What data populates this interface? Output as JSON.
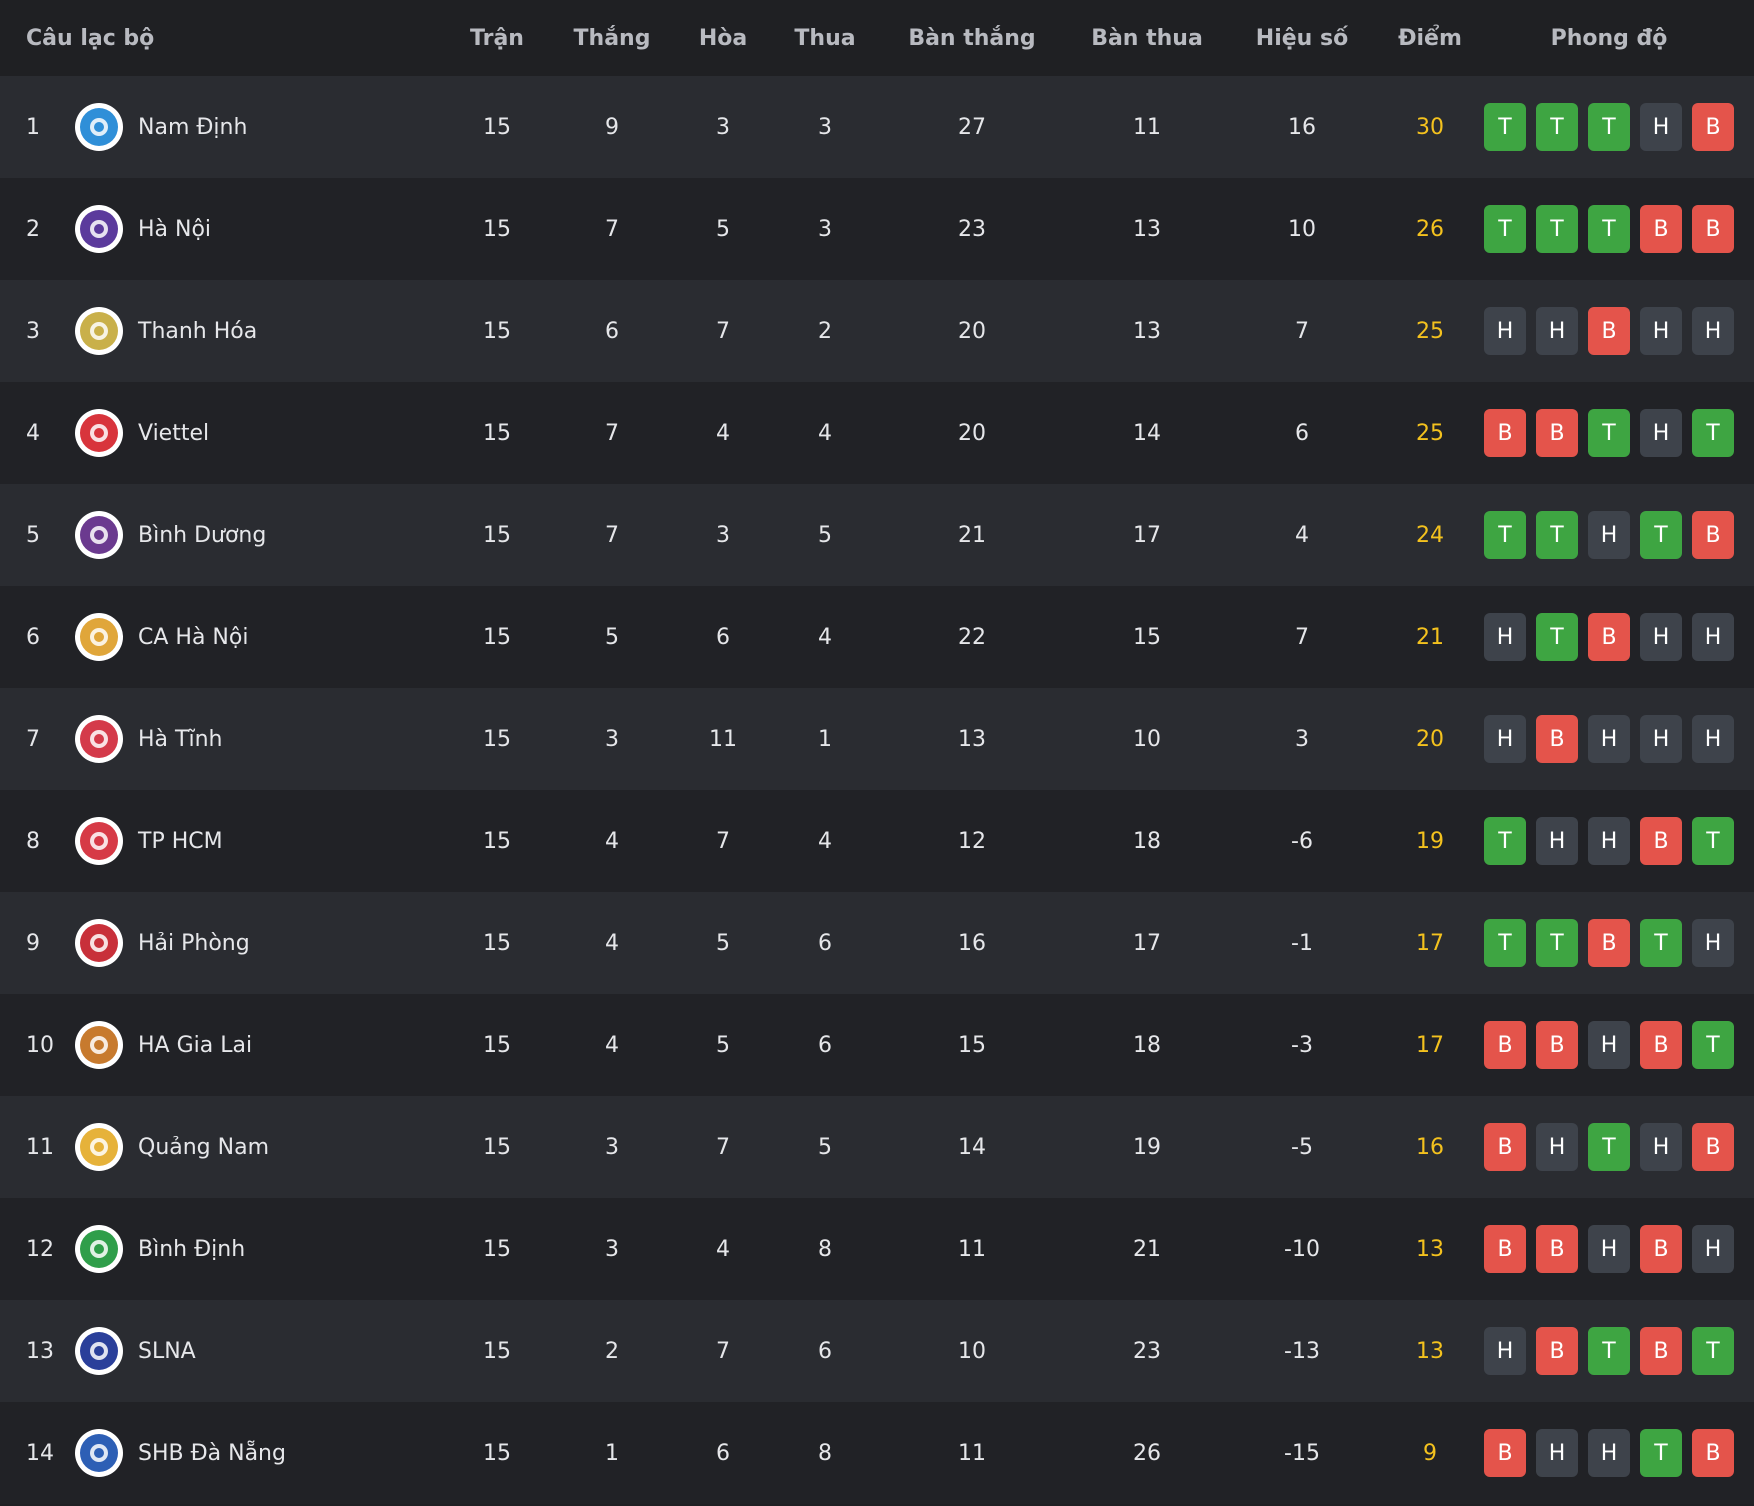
{
  "header": {
    "club": "Câu lạc bộ",
    "played": "Trận",
    "won": "Thắng",
    "drawn": "Hòa",
    "lost": "Thua",
    "goals_for": "Bàn thắng",
    "goals_against": "Bàn thua",
    "goal_diff": "Hiệu số",
    "points": "Điểm",
    "form": "Phong độ"
  },
  "colors": {
    "win": "#3ea542",
    "loss": "#e4544b",
    "draw": "#3e434b",
    "points": "#f4c21e"
  },
  "rows": [
    {
      "rank": "1",
      "club": "Nam Định",
      "played": "15",
      "won": "9",
      "drawn": "3",
      "lost": "3",
      "gf": "27",
      "ga": "11",
      "gd": "16",
      "pts": "30",
      "form": [
        "T",
        "T",
        "T",
        "H",
        "B"
      ],
      "logo_color": "#2f8fd8",
      "logo_icon": "nam-dinh-crest-icon"
    },
    {
      "rank": "2",
      "club": "Hà Nội",
      "played": "15",
      "won": "7",
      "drawn": "5",
      "lost": "3",
      "gf": "23",
      "ga": "13",
      "gd": "10",
      "pts": "26",
      "form": [
        "T",
        "T",
        "T",
        "B",
        "B"
      ],
      "logo_color": "#5b3a9c",
      "logo_icon": "ha-noi-crest-icon"
    },
    {
      "rank": "3",
      "club": "Thanh Hóa",
      "played": "15",
      "won": "6",
      "drawn": "7",
      "lost": "2",
      "gf": "20",
      "ga": "13",
      "gd": "7",
      "pts": "25",
      "form": [
        "H",
        "H",
        "B",
        "H",
        "H"
      ],
      "logo_color": "#c9b04a",
      "logo_icon": "thanh-hoa-crest-icon"
    },
    {
      "rank": "4",
      "club": "Viettel",
      "played": "15",
      "won": "7",
      "drawn": "4",
      "lost": "4",
      "gf": "20",
      "ga": "14",
      "gd": "6",
      "pts": "25",
      "form": [
        "B",
        "B",
        "T",
        "H",
        "T"
      ],
      "logo_color": "#d8343c",
      "logo_icon": "viettel-crest-icon"
    },
    {
      "rank": "5",
      "club": "Bình Dương",
      "played": "15",
      "won": "7",
      "drawn": "3",
      "lost": "5",
      "gf": "21",
      "ga": "17",
      "gd": "4",
      "pts": "24",
      "form": [
        "T",
        "T",
        "H",
        "T",
        "B"
      ],
      "logo_color": "#6b3a8f",
      "logo_icon": "binh-duong-crest-icon"
    },
    {
      "rank": "6",
      "club": "CA Hà Nội",
      "played": "15",
      "won": "5",
      "drawn": "6",
      "lost": "4",
      "gf": "22",
      "ga": "15",
      "gd": "7",
      "pts": "21",
      "form": [
        "H",
        "T",
        "B",
        "H",
        "H"
      ],
      "logo_color": "#e0a63a",
      "logo_icon": "ca-ha-noi-crest-icon"
    },
    {
      "rank": "7",
      "club": "Hà Tĩnh",
      "played": "15",
      "won": "3",
      "drawn": "11",
      "lost": "1",
      "gf": "13",
      "ga": "10",
      "gd": "3",
      "pts": "20",
      "form": [
        "H",
        "B",
        "H",
        "H",
        "H"
      ],
      "logo_color": "#d43a4a",
      "logo_icon": "ha-tinh-crest-icon"
    },
    {
      "rank": "8",
      "club": "TP HCM",
      "played": "15",
      "won": "4",
      "drawn": "7",
      "lost": "4",
      "gf": "12",
      "ga": "18",
      "gd": "-6",
      "pts": "19",
      "form": [
        "T",
        "H",
        "H",
        "B",
        "T"
      ],
      "logo_color": "#d63a46",
      "logo_icon": "tp-hcm-crest-icon"
    },
    {
      "rank": "9",
      "club": "Hải Phòng",
      "played": "15",
      "won": "4",
      "drawn": "5",
      "lost": "6",
      "gf": "16",
      "ga": "17",
      "gd": "-1",
      "pts": "17",
      "form": [
        "T",
        "T",
        "B",
        "T",
        "H"
      ],
      "logo_color": "#c8303a",
      "logo_icon": "hai-phong-crest-icon"
    },
    {
      "rank": "10",
      "club": "HA Gia Lai",
      "played": "15",
      "won": "4",
      "drawn": "5",
      "lost": "6",
      "gf": "15",
      "ga": "18",
      "gd": "-3",
      "pts": "17",
      "form": [
        "B",
        "B",
        "H",
        "B",
        "T"
      ],
      "logo_color": "#c77a2e",
      "logo_icon": "hagl-crest-icon"
    },
    {
      "rank": "11",
      "club": "Quảng Nam",
      "played": "15",
      "won": "3",
      "drawn": "7",
      "lost": "5",
      "gf": "14",
      "ga": "19",
      "gd": "-5",
      "pts": "16",
      "form": [
        "B",
        "H",
        "T",
        "H",
        "B"
      ],
      "logo_color": "#e6b23a",
      "logo_icon": "quang-nam-crest-icon"
    },
    {
      "rank": "12",
      "club": "Bình Định",
      "played": "15",
      "won": "3",
      "drawn": "4",
      "lost": "8",
      "gf": "11",
      "ga": "21",
      "gd": "-10",
      "pts": "13",
      "form": [
        "B",
        "B",
        "H",
        "B",
        "H"
      ],
      "logo_color": "#2f9e4a",
      "logo_icon": "binh-dinh-crest-icon"
    },
    {
      "rank": "13",
      "club": "SLNA",
      "played": "15",
      "won": "2",
      "drawn": "7",
      "lost": "6",
      "gf": "10",
      "ga": "23",
      "gd": "-13",
      "pts": "13",
      "form": [
        "H",
        "B",
        "T",
        "B",
        "T"
      ],
      "logo_color": "#2a3f9a",
      "logo_icon": "slna-crest-icon"
    },
    {
      "rank": "14",
      "club": "SHB Đà Nẵng",
      "played": "15",
      "won": "1",
      "drawn": "6",
      "lost": "8",
      "gf": "11",
      "ga": "26",
      "gd": "-15",
      "pts": "9",
      "form": [
        "B",
        "H",
        "H",
        "T",
        "B"
      ],
      "logo_color": "#2d5fb5",
      "logo_icon": "shb-da-nang-crest-icon"
    }
  ]
}
